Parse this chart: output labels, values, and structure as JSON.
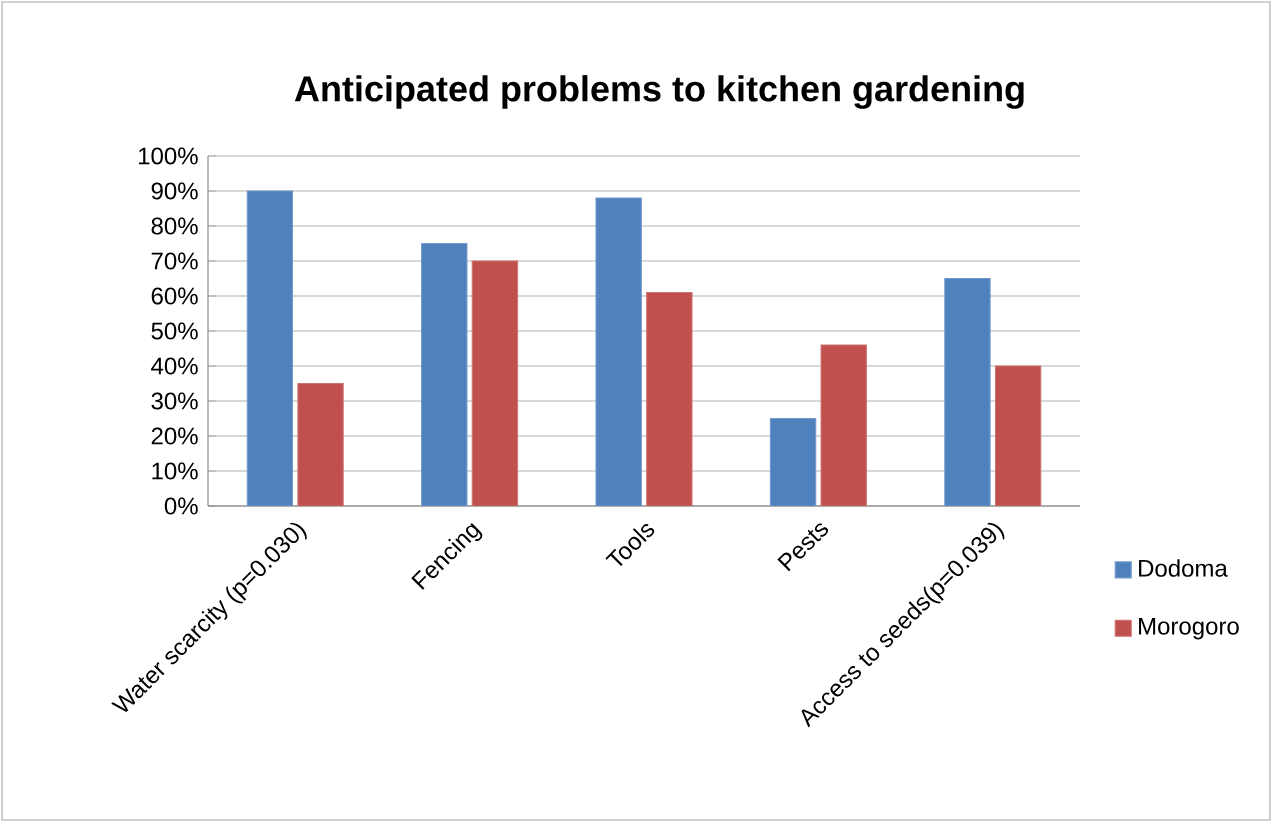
{
  "chart_data": {
    "type": "bar",
    "title": "Anticipated problems to kitchen gardening",
    "categories": [
      "Water scarcity (p=0.030)",
      "Fencing",
      "Tools",
      "Pests",
      "Access to seeds(p=0.039)"
    ],
    "series": [
      {
        "name": "Dodoma",
        "color": "#4f81bd",
        "values": [
          90,
          75,
          88,
          25,
          65
        ]
      },
      {
        "name": "Morogoro",
        "color": "#c0504d",
        "values": [
          35,
          70,
          61,
          46,
          40
        ]
      }
    ],
    "ylim": [
      0,
      100
    ],
    "yticks": [
      {
        "value": 0,
        "label": "0%"
      },
      {
        "value": 10,
        "label": "10%"
      },
      {
        "value": 20,
        "label": "20%"
      },
      {
        "value": 30,
        "label": "30%"
      },
      {
        "value": 40,
        "label": "40%"
      },
      {
        "value": 50,
        "label": "50%"
      },
      {
        "value": 60,
        "label": "60%"
      },
      {
        "value": 70,
        "label": "70%"
      },
      {
        "value": 80,
        "label": "80%"
      },
      {
        "value": 90,
        "label": "90%"
      },
      {
        "value": 100,
        "label": "100%"
      }
    ],
    "grid": "y",
    "legend": "right"
  }
}
